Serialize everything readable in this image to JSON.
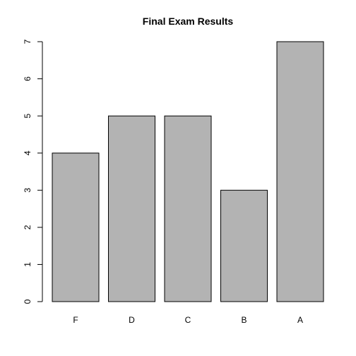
{
  "chart_data": {
    "type": "bar",
    "title": "Final Exam Results",
    "xlabel": "",
    "ylabel": "",
    "categories": [
      "F",
      "D",
      "C",
      "B",
      "A"
    ],
    "values": [
      4,
      5,
      5,
      3,
      7
    ],
    "ylim": [
      0,
      7
    ],
    "yticks": [
      0,
      1,
      2,
      3,
      4,
      5,
      6,
      7
    ],
    "grid": false,
    "legend": "none",
    "bar_color": "#b3b3b3",
    "bar_border_color": "#000000"
  }
}
